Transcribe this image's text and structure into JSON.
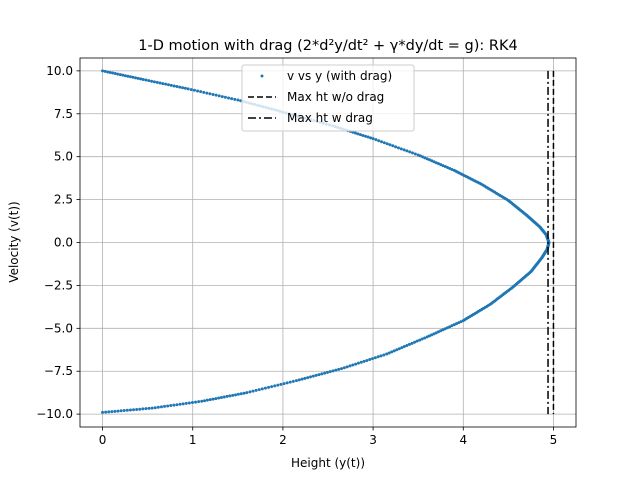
{
  "chart_data": {
    "type": "scatter",
    "title": "1-D motion with drag (2*d²y/dt² + γ*dy/dt = g): RK4",
    "xlabel": "Height (y(t))",
    "ylabel": "Velocity (v(t))",
    "xlim": [
      -0.25,
      5.25
    ],
    "ylim": [
      -10.75,
      10.75
    ],
    "x_ticks": [
      0,
      1,
      2,
      3,
      4,
      5
    ],
    "y_ticks": [
      -10.0,
      -7.5,
      -5.0,
      -2.5,
      0.0,
      2.5,
      5.0,
      7.5,
      10.0
    ],
    "x_tick_labels": [
      "0",
      "1",
      "2",
      "3",
      "4",
      "5"
    ],
    "y_tick_labels": [
      "−10.0",
      "−7.5",
      "−5.0",
      "−2.5",
      "0.0",
      "2.5",
      "5.0",
      "7.5",
      "10.0"
    ],
    "grid": true,
    "legend_position": "upper-center",
    "series": [
      {
        "name": "v vs y (with drag)",
        "kind": "points",
        "color": "#1f77b4",
        "x": [
          0.0,
          0.45,
          0.95,
          1.5,
          2.0,
          2.55,
          3.0,
          3.5,
          3.9,
          4.2,
          4.5,
          4.7,
          4.85,
          4.92,
          4.95,
          4.93,
          4.87,
          4.75,
          4.55,
          4.3,
          4.0,
          3.6,
          3.15,
          2.65,
          2.15,
          1.6,
          1.1,
          0.55,
          0.0
        ],
        "y": [
          10.0,
          9.5,
          8.95,
          8.3,
          7.6,
          6.8,
          6.05,
          5.1,
          4.2,
          3.4,
          2.45,
          1.6,
          0.9,
          0.45,
          0.0,
          -0.4,
          -0.9,
          -1.7,
          -2.6,
          -3.6,
          -4.55,
          -5.5,
          -6.5,
          -7.35,
          -8.05,
          -8.75,
          -9.25,
          -9.65,
          -9.9
        ]
      },
      {
        "name": "Max ht w/o drag",
        "kind": "vline",
        "style": "dashed",
        "color": "#000000",
        "x": 5.0,
        "y_range": [
          -10.0,
          10.0
        ]
      },
      {
        "name": "Max ht w drag",
        "kind": "vline",
        "style": "dashdot",
        "color": "#000000",
        "x": 4.94,
        "y_range": [
          -10.0,
          10.0
        ]
      }
    ]
  }
}
